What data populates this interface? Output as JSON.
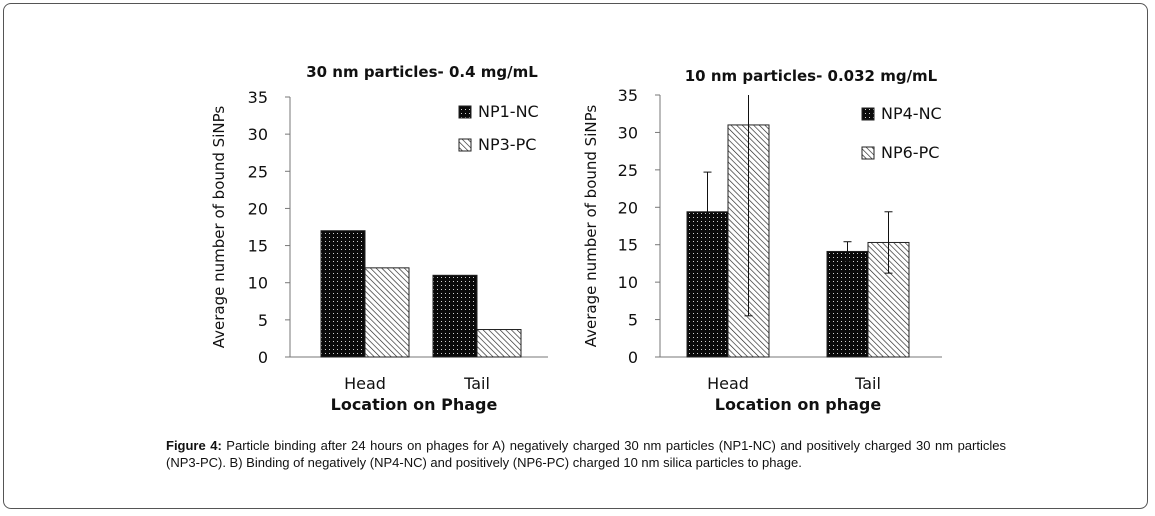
{
  "chart_data": [
    {
      "type": "bar",
      "title": "30 nm particles- 0.4 mg/mL",
      "xlabel": "Location on Phage",
      "ylabel": "Average number of bound SiNPs",
      "categories": [
        "Head",
        "Tail"
      ],
      "ylim": [
        0,
        35
      ],
      "yticks": [
        "0",
        "5",
        "10",
        "15",
        "20",
        "25",
        "30",
        "35"
      ],
      "legend_position": "top-right",
      "series": [
        {
          "name": "NP1-NC",
          "pattern": "dark-dotted",
          "values": [
            17,
            11
          ]
        },
        {
          "name": "NP3-PC",
          "pattern": "diagonal-hatch",
          "values": [
            12,
            3.7
          ]
        }
      ]
    },
    {
      "type": "bar",
      "title": "10 nm particles- 0.032 mg/mL",
      "xlabel": "Location on phage",
      "ylabel": "Average number of bound SiNPs",
      "categories": [
        "Head",
        "Tail"
      ],
      "ylim": [
        0,
        35
      ],
      "yticks": [
        "0",
        "5",
        "10",
        "15",
        "20",
        "25",
        "30",
        "35"
      ],
      "legend_position": "top-right",
      "series": [
        {
          "name": "NP4-NC",
          "pattern": "dark-dotted",
          "values": [
            19.4,
            14.1
          ],
          "error": [
            5.3,
            1.3
          ]
        },
        {
          "name": "NP6-PC",
          "pattern": "diagonal-hatch",
          "values": [
            31.0,
            15.3
          ],
          "error": [
            25.5,
            4.1
          ]
        }
      ]
    }
  ],
  "caption": {
    "label": "Figure 4:",
    "text": " Particle binding after 24 hours on phages for A) negatively charged 30 nm particles (NP1-NC) and positively charged 30 nm particles (NP3-PC). B) Binding of negatively (NP4-NC) and positively (NP6-PC) charged 10 nm silica particles to phage."
  }
}
